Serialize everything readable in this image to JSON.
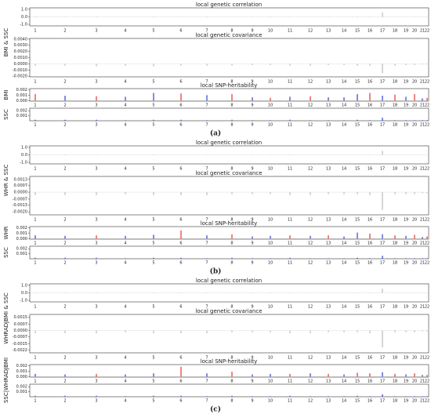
{
  "chromosomes": [
    1,
    2,
    3,
    4,
    5,
    6,
    7,
    8,
    9,
    10,
    11,
    12,
    13,
    14,
    15,
    16,
    17,
    18,
    19,
    20,
    21,
    22
  ],
  "panels": [
    {
      "label": "(a)",
      "ylabel": "BMI & SSC",
      "subplots": [
        {
          "type": "bar",
          "title": "local genetic correlation",
          "ylim": [
            -1.2,
            1.2
          ],
          "yticks": [
            {
              "value": 1,
              "label": "1.0"
            },
            {
              "value": 0,
              "label": "0.0"
            },
            {
              "value": -1,
              "label": "-1.0"
            }
          ],
          "color": "#bbbbbb",
          "values": [
            0.05,
            0.04,
            0.06,
            0.03,
            0.05,
            0.04,
            0.05,
            0.03,
            0.04,
            0.05,
            0.04,
            0.03,
            0.04,
            0.03,
            0.05,
            0.04,
            0.6,
            0.04,
            0.03,
            0.03,
            0.02,
            0.02
          ]
        },
        {
          "type": "bar",
          "title": "local genetic covariance",
          "ylim": [
            -0.0021,
            0.0041
          ],
          "yticks": [
            {
              "value": 0.004,
              "label": "0.0040"
            },
            {
              "value": 0.003,
              "label": "0.0030"
            },
            {
              "value": 0.002,
              "label": "0.0020"
            },
            {
              "value": 0.001,
              "label": "0.0010"
            },
            {
              "value": 0,
              "label": "0.0000"
            },
            {
              "value": -0.001,
              "label": "-0.0010"
            },
            {
              "value": -0.002,
              "label": "-0.0020"
            }
          ],
          "color": "#bbbbbb",
          "values": [
            -0.0003,
            -0.0003,
            -0.0004,
            -0.0003,
            -0.0004,
            -0.0003,
            -0.0003,
            -0.0003,
            -0.0002,
            -0.0002,
            -0.0003,
            -0.0003,
            -0.0002,
            -0.0002,
            -0.0003,
            -0.0003,
            -0.0015,
            -0.0003,
            -0.0002,
            -0.0002,
            -0.0001,
            -0.0001
          ]
        },
        {
          "type": "bar",
          "title": "local SNP-heritability",
          "ylabel": "BMI",
          "ylim": [
            -0.0001,
            0.0022
          ],
          "yticks": [
            0.002,
            0.001,
            {
              "value": 0,
              "label": "0.000"
            }
          ],
          "colors": [
            "#e8312a",
            "#2a3fd6",
            "#e8312a",
            "#2a3fd6",
            "#2a3fd6",
            "#e8312a",
            "#2a3fd6",
            "#e8312a",
            "#2a3fd6",
            "#e8312a",
            "#2a3fd6",
            "#e8312a",
            "#2a3fd6",
            "#2a3fd6",
            "#2a3fd6",
            "#e8312a",
            "#2a3fd6",
            "#e8312a",
            "#2a3fd6",
            "#e8312a",
            "#2a3fd6",
            "#e8312a"
          ],
          "values": [
            0.0012,
            0.0009,
            0.0008,
            0.0007,
            0.0014,
            0.0013,
            0.001,
            0.0012,
            0.0006,
            0.0005,
            0.0007,
            0.0008,
            0.0006,
            0.0006,
            0.0012,
            0.0014,
            0.0009,
            0.0011,
            0.0007,
            0.0012,
            0.0004,
            0.0005
          ]
        },
        {
          "type": "bar",
          "ylabel": "SSC",
          "ylim": [
            0,
            0.0025
          ],
          "yticks": [
            0.002,
            0.001
          ],
          "color": "#2a3fd6",
          "values": [
            0.0002,
            0.0002,
            0.0002,
            0.0001,
            0.0002,
            0.0002,
            0.0001,
            0.0002,
            0.0001,
            0.0001,
            0.0002,
            0.0001,
            0.0001,
            0.0001,
            0.0002,
            0.0001,
            0.0006,
            0.0001,
            0.0001,
            0.0001,
            0.0001,
            0.0001
          ]
        }
      ]
    },
    {
      "label": "(b)",
      "ylabel": "WHR & SSC",
      "subplots": [
        {
          "type": "bar",
          "title": "local genetic correlation",
          "ylim": [
            -1.2,
            1.2
          ],
          "yticks": [
            {
              "value": 1,
              "label": "1.0"
            },
            {
              "value": 0,
              "label": "0.0"
            },
            {
              "value": -1,
              "label": "-1.0"
            }
          ],
          "color": "#bbbbbb",
          "values": [
            0.04,
            0.05,
            0.04,
            0.03,
            0.05,
            0.04,
            0.04,
            0.03,
            0.04,
            0.04,
            0.05,
            0.03,
            0.03,
            0.03,
            0.04,
            0.04,
            0.55,
            0.03,
            0.03,
            0.03,
            0.02,
            0.02
          ]
        },
        {
          "type": "bar",
          "title": "local genetic covariance",
          "ylim": [
            -0.0023,
            0.0016
          ],
          "yticks": [
            0.0013,
            0.0007,
            {
              "value": 0,
              "label": "0.0000"
            },
            -0.0007,
            -0.0013,
            {
              "value": -0.002,
              "label": "-0.0020"
            }
          ],
          "color": "#bbbbbb",
          "values": [
            -0.0003,
            -0.0003,
            -0.0003,
            -0.0002,
            -0.0003,
            -0.0003,
            -0.0003,
            -0.0002,
            -0.0002,
            -0.0002,
            -0.0003,
            -0.0003,
            -0.0002,
            -0.0002,
            -0.0002,
            -0.0003,
            -0.0018,
            -0.0002,
            -0.0002,
            -0.0002,
            -0.0001,
            -0.0001
          ]
        },
        {
          "type": "bar",
          "title": "local SNP-heritability",
          "ylabel": "WHR",
          "ylim": [
            -0.0001,
            0.0022
          ],
          "yticks": [
            0.002,
            0.001,
            {
              "value": 0,
              "label": "0.000"
            }
          ],
          "colors": [
            "#2a3fd6",
            "#2a3fd6",
            "#e8312a",
            "#2a3fd6",
            "#2a3fd6",
            "#e8312a",
            "#2a3fd6",
            "#e8312a",
            "#2a3fd6",
            "#2a3fd6",
            "#e8312a",
            "#2a3fd6",
            "#e8312a",
            "#2a3fd6",
            "#2a3fd6",
            "#e8312a",
            "#2a3fd6",
            "#e8312a",
            "#2a3fd6",
            "#e8312a",
            "#2a3fd6",
            "#e8312a"
          ],
          "values": [
            0.0006,
            0.0005,
            0.0006,
            0.0005,
            0.0007,
            0.0015,
            0.0006,
            0.0008,
            0.0004,
            0.0005,
            0.0006,
            0.0005,
            0.0006,
            0.0004,
            0.0011,
            0.0009,
            0.0008,
            0.0006,
            0.0005,
            0.0007,
            0.0003,
            0.0004
          ]
        },
        {
          "type": "bar",
          "ylabel": "SSC",
          "ylim": [
            0,
            0.0025
          ],
          "yticks": [
            0.002,
            0.001
          ],
          "color": "#2a3fd6",
          "values": [
            0.0002,
            0.0002,
            0.0002,
            0.0001,
            0.0002,
            0.0002,
            0.0001,
            0.0002,
            0.0001,
            0.0001,
            0.0002,
            0.0001,
            0.0001,
            0.0001,
            0.0002,
            0.0001,
            0.0006,
            0.0001,
            0.0001,
            0.0001,
            0.0001,
            0.0001
          ]
        }
      ]
    },
    {
      "label": "(c)",
      "ylabel": "WHRADJBMI & SSC",
      "subplots": [
        {
          "type": "bar",
          "title": "local genetic correlation",
          "ylim": [
            -1.2,
            1.2
          ],
          "yticks": [
            {
              "value": 1,
              "label": "1.0"
            },
            {
              "value": 0,
              "label": "0.0"
            },
            {
              "value": -1,
              "label": "-1.0"
            }
          ],
          "color": "#bbbbbb",
          "values": [
            0.04,
            0.04,
            0.05,
            0.03,
            0.04,
            0.05,
            0.04,
            0.03,
            0.04,
            0.04,
            0.04,
            0.03,
            0.03,
            0.03,
            0.04,
            0.04,
            0.55,
            0.03,
            0.03,
            0.03,
            0.02,
            0.02
          ]
        },
        {
          "type": "bar",
          "title": "local genetic covariance",
          "ylim": [
            -0.0025,
            0.0018
          ],
          "yticks": [
            0.0015,
            0.0007,
            {
              "value": 0,
              "label": "0.0000"
            },
            -0.0007,
            -0.0015,
            -0.0022
          ],
          "color": "#bbbbbb",
          "values": [
            -0.0003,
            -0.0003,
            -0.0003,
            -0.0002,
            -0.0003,
            -0.0003,
            -0.0003,
            -0.0002,
            -0.0002,
            -0.0002,
            -0.0003,
            -0.0003,
            -0.0002,
            -0.0002,
            -0.0002,
            -0.0003,
            -0.0019,
            -0.0002,
            -0.0002,
            -0.0002,
            -0.0001,
            -0.0001
          ]
        },
        {
          "type": "bar",
          "title": "local SNP-heritability",
          "ylabel": "SSC|WHRADJBMI",
          "ylim": [
            -0.0001,
            0.0022
          ],
          "yticks": [
            0.002,
            0.001,
            {
              "value": 0,
              "label": "0.000"
            }
          ],
          "colors": [
            "#2a3fd6",
            "#2a3fd6",
            "#e8312a",
            "#2a3fd6",
            "#2a3fd6",
            "#e8312a",
            "#2a3fd6",
            "#e8312a",
            "#2a3fd6",
            "#2a3fd6",
            "#e8312a",
            "#2a3fd6",
            "#e8312a",
            "#2a3fd6",
            "#e8312a",
            "#e8312a",
            "#2a3fd6",
            "#e8312a",
            "#2a3fd6",
            "#e8312a",
            "#2a3fd6",
            "#e8312a"
          ],
          "values": [
            0.0005,
            0.0004,
            0.0005,
            0.0004,
            0.0006,
            0.0018,
            0.0006,
            0.0009,
            0.0004,
            0.0005,
            0.0005,
            0.0006,
            0.0005,
            0.0004,
            0.0007,
            0.0006,
            0.0008,
            0.0005,
            0.0004,
            0.0006,
            0.0003,
            0.0003
          ]
        },
        {
          "type": "bar",
          "ylim": [
            0,
            0.0025
          ],
          "yticks": [
            0.002,
            0.001
          ],
          "color": "#2a3fd6",
          "values": [
            0.0002,
            0.0002,
            0.0002,
            0.0001,
            0.0002,
            0.0002,
            0.0001,
            0.0002,
            0.0001,
            0.0001,
            0.0002,
            0.0001,
            0.0001,
            0.0001,
            0.0002,
            0.0001,
            0.0005,
            0.0001,
            0.0001,
            0.0001,
            0.0001,
            0.0001
          ]
        }
      ]
    }
  ]
}
